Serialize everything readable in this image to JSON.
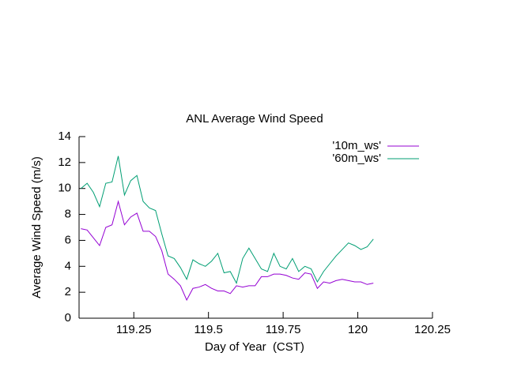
{
  "chart_data": {
    "type": "line",
    "title": "ANL Average Wind Speed",
    "x_label": "Day of Year  (CST)",
    "y_label": "Average Wind Speed (m/s)",
    "x": [
      119.0729,
      119.0937,
      119.1146,
      119.1354,
      119.1562,
      119.1771,
      119.1979,
      119.2187,
      119.2396,
      119.2604,
      119.2812,
      119.3021,
      119.3229,
      119.3437,
      119.3646,
      119.3854,
      119.4062,
      119.4271,
      119.4479,
      119.4687,
      119.4896,
      119.5104,
      119.5312,
      119.5521,
      119.5729,
      119.5937,
      119.6146,
      119.6354,
      119.6562,
      119.6771,
      119.6979,
      119.7187,
      119.7396,
      119.7604,
      119.7812,
      119.8021,
      119.8229,
      119.8437,
      119.8646,
      119.8854,
      119.9062,
      119.9271,
      119.9479,
      119.9687,
      119.9896,
      120.0104,
      120.0312,
      120.0521
    ],
    "series": [
      {
        "name": "'10m_ws'",
        "color": "#9400d3",
        "values": [
          6.9,
          6.8,
          6.2,
          5.6,
          7.0,
          7.2,
          9.0,
          7.2,
          7.8,
          8.1,
          6.7,
          6.7,
          6.3,
          5.2,
          3.4,
          3.0,
          2.5,
          1.4,
          2.3,
          2.4,
          2.6,
          2.3,
          2.1,
          2.1,
          1.9,
          2.5,
          2.4,
          2.5,
          2.5,
          3.2,
          3.2,
          3.4,
          3.4,
          3.3,
          3.1,
          3.0,
          3.5,
          3.4,
          2.3,
          2.8,
          2.7,
          2.9,
          3.0,
          2.9,
          2.8,
          2.8,
          2.6,
          2.7
        ]
      },
      {
        "name": "'60m_ws'",
        "color": "#009e73",
        "values": [
          10.0,
          10.4,
          9.7,
          8.6,
          10.4,
          10.5,
          12.5,
          9.5,
          10.6,
          11.0,
          9.0,
          8.5,
          8.3,
          6.5,
          4.8,
          4.6,
          3.9,
          3.0,
          4.5,
          4.2,
          4.0,
          4.4,
          5.0,
          3.5,
          3.6,
          2.7,
          4.6,
          5.4,
          4.6,
          3.8,
          3.6,
          5.0,
          4.0,
          3.8,
          4.6,
          3.6,
          4.0,
          3.8,
          2.8,
          3.6,
          4.2,
          4.8,
          5.3,
          5.8,
          5.6,
          5.3,
          5.5,
          6.1
        ]
      }
    ],
    "xlim": [
      119.0667,
      120.25
    ],
    "xticks": [
      119.25,
      119.5,
      119.75,
      120,
      120.25
    ],
    "ylim": [
      0,
      14
    ],
    "yticks": [
      0,
      2,
      4,
      6,
      8,
      10,
      12,
      14
    ],
    "legend": "top-right"
  }
}
